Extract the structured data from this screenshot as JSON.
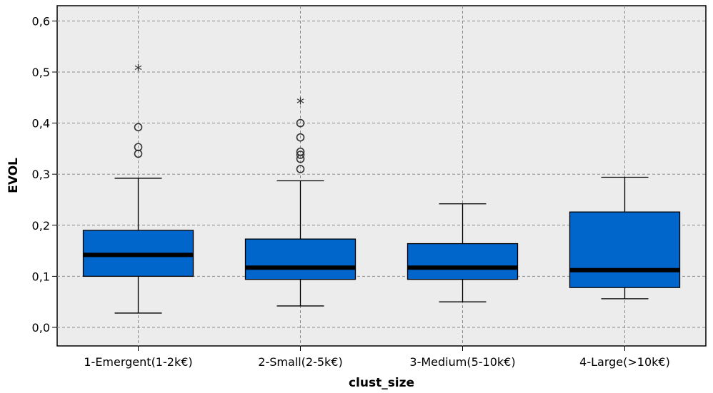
{
  "chart_data": {
    "type": "boxplot",
    "xlabel": "clust_size",
    "ylabel": "EVOL",
    "ylim": [
      -0.03,
      0.63
    ],
    "yticks": [
      0.0,
      0.1,
      0.2,
      0.3,
      0.4,
      0.5,
      0.6
    ],
    "ytick_labels": [
      "0,0",
      "0,1",
      "0,2",
      "0,3",
      "0,4",
      "0,5",
      "0,6"
    ],
    "grid": true,
    "box_color": "#0066cc",
    "plot_background": "#ececec",
    "categories": [
      "1-Emergent(1-2k€)",
      "2-Small(2-5k€)",
      "3-Medium(5-10k€)",
      "4-Large(>10k€)"
    ],
    "boxes": [
      {
        "whisker_low": 0.028,
        "q1": 0.1,
        "median": 0.142,
        "q3": 0.19,
        "whisker_high": 0.292,
        "outliers": [
          0.34,
          0.353,
          0.392
        ],
        "extremes": [
          0.505
        ]
      },
      {
        "whisker_low": 0.042,
        "q1": 0.094,
        "median": 0.117,
        "q3": 0.173,
        "whisker_high": 0.287,
        "outliers": [
          0.31,
          0.33,
          0.338,
          0.344,
          0.372,
          0.4
        ],
        "extremes": [
          0.44
        ]
      },
      {
        "whisker_low": 0.05,
        "q1": 0.094,
        "median": 0.117,
        "q3": 0.164,
        "whisker_high": 0.242,
        "outliers": [],
        "extremes": []
      },
      {
        "whisker_low": 0.056,
        "q1": 0.078,
        "median": 0.112,
        "q3": 0.226,
        "whisker_high": 0.294,
        "outliers": [],
        "extremes": []
      }
    ]
  }
}
